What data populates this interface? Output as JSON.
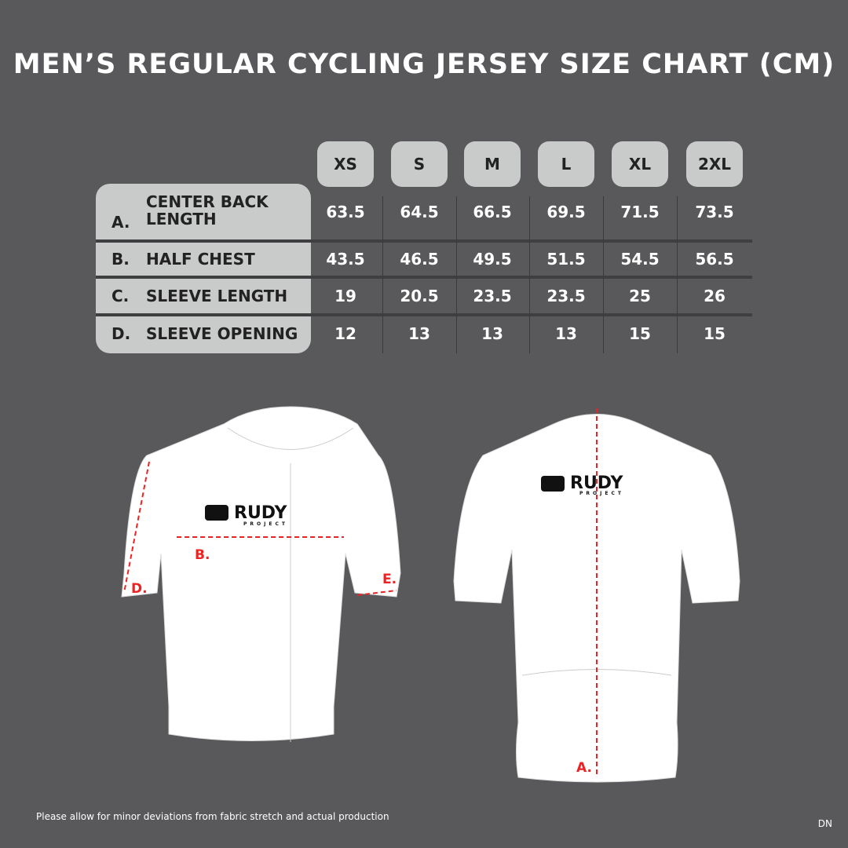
{
  "header": {
    "title": "MEN’S REGULAR CYCLING JERSEY SIZE CHART (CM)"
  },
  "table": {
    "columns": [
      "XS",
      "S",
      "M",
      "L",
      "XL",
      "2XL"
    ],
    "rows": [
      {
        "letter": "A.",
        "label": "CENTER BACK LENGTH",
        "values": [
          63.5,
          64.5,
          66.5,
          69.5,
          71.5,
          73.5
        ]
      },
      {
        "letter": "B.",
        "label": "HALF CHEST",
        "values": [
          43.5,
          46.5,
          49.5,
          51.5,
          54.5,
          56.5
        ]
      },
      {
        "letter": "C.",
        "label": "SLEEVE LENGTH",
        "values": [
          19,
          20.5,
          23.5,
          23.5,
          25,
          26
        ]
      },
      {
        "letter": "D.",
        "label": "SLEEVE OPENING",
        "values": [
          12,
          13,
          13,
          13,
          15,
          15
        ]
      }
    ]
  },
  "figure": {
    "front_labels": [
      "B.",
      "D.",
      "E."
    ],
    "back_labels": [
      "A."
    ],
    "logo": "RUDY",
    "logo_sub": "PROJECT"
  },
  "footer": {
    "note": "Please allow for minor deviations from fabric stretch and actual production",
    "code": "DN"
  }
}
